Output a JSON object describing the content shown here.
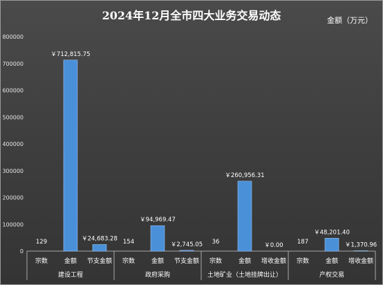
{
  "chart_data": {
    "type": "bar",
    "title": "2024年12月全市四大业务交易动态",
    "unit_label": "金额（万元）",
    "ylim": [
      0,
      800000
    ],
    "yticks": [
      0,
      100000,
      200000,
      300000,
      400000,
      500000,
      600000,
      700000,
      800000
    ],
    "grid": false,
    "bar_color": "#4a90d9",
    "groups": [
      {
        "name": "建设工程",
        "items": [
          {
            "label": "宗数",
            "value": 129,
            "display": "129",
            "show_bar": false
          },
          {
            "label": "金额",
            "value": 712815.75,
            "display": "￥712,815.75",
            "show_bar": true
          },
          {
            "label": "节支金额",
            "value": 24683.28,
            "display": "￥24,683.28",
            "show_bar": true
          }
        ]
      },
      {
        "name": "政府采购",
        "items": [
          {
            "label": "宗数",
            "value": 154,
            "display": "154",
            "show_bar": false
          },
          {
            "label": "金额",
            "value": 94969.47,
            "display": "￥94,969.47",
            "show_bar": true
          },
          {
            "label": "节支金额",
            "value": 2745.05,
            "display": "￥2,745.05",
            "show_bar": true
          }
        ]
      },
      {
        "name": "土地矿业（土地挂牌出让）",
        "items": [
          {
            "label": "宗数",
            "value": 36,
            "display": "36",
            "show_bar": false
          },
          {
            "label": "金额",
            "value": 260956.31,
            "display": "￥260,956.31",
            "show_bar": true
          },
          {
            "label": "增收金额",
            "value": 0,
            "display": "￥0.00",
            "show_bar": true
          }
        ]
      },
      {
        "name": "产权交易",
        "items": [
          {
            "label": "宗数",
            "value": 187,
            "display": "187",
            "show_bar": false
          },
          {
            "label": "金额",
            "value": 48201.4,
            "display": "￥48,201.40",
            "show_bar": true
          },
          {
            "label": "增收金额",
            "value": 1370.96,
            "display": "￥1,370.96",
            "show_bar": true
          }
        ]
      }
    ]
  }
}
